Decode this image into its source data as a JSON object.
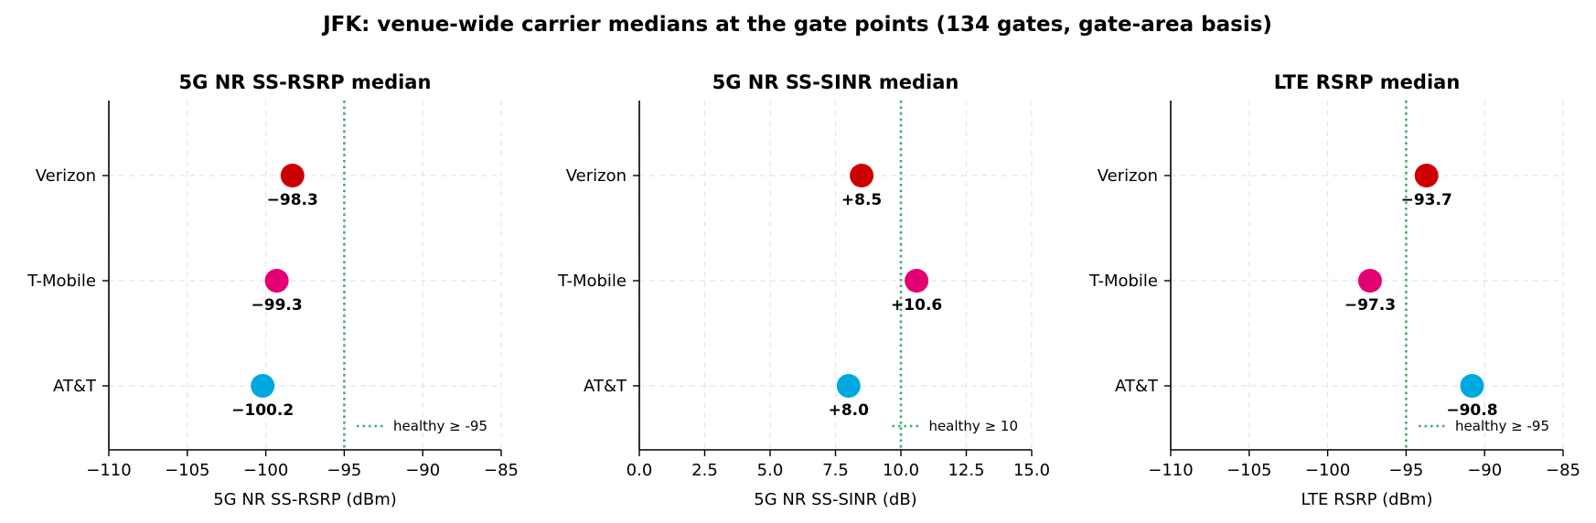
{
  "figure": {
    "title": "JFK: venue-wide carrier medians at the gate points (134 gates, gate-area basis)"
  },
  "colors": {
    "Verizon": "#cc0000",
    "T-Mobile": "#e20074",
    "AT&T": "#00a8e0",
    "threshold": "#3cae6a"
  },
  "chart_data": [
    {
      "type": "scatter",
      "title": "5G NR SS-RSRP median",
      "xlabel": "5G NR SS-RSRP (dBm)",
      "ylabel": "",
      "xlim": [
        -110,
        -85
      ],
      "xticks": [
        -110,
        -105,
        -100,
        -95,
        -90,
        -85
      ],
      "xtick_labels": [
        "−110",
        "−105",
        "−100",
        "−95",
        "−90",
        "−85"
      ],
      "categories": [
        "Verizon",
        "T-Mobile",
        "AT&T"
      ],
      "values": [
        -98.3,
        -99.3,
        -100.2
      ],
      "value_labels": [
        "−98.3",
        "−99.3",
        "−100.2"
      ],
      "threshold": {
        "value": -95,
        "label": "healthy ≥ -95"
      },
      "legend_position": "lower-right",
      "grid": true
    },
    {
      "type": "scatter",
      "title": "5G NR SS-SINR median",
      "xlabel": "5G NR SS-SINR (dB)",
      "ylabel": "",
      "xlim": [
        0,
        15
      ],
      "xticks": [
        0,
        2.5,
        5,
        7.5,
        10,
        12.5,
        15
      ],
      "xtick_labels": [
        "0.0",
        "2.5",
        "5.0",
        "7.5",
        "10.0",
        "12.5",
        "15.0"
      ],
      "categories": [
        "Verizon",
        "T-Mobile",
        "AT&T"
      ],
      "values": [
        8.5,
        10.6,
        8.0
      ],
      "value_labels": [
        "+8.5",
        "+10.6",
        "+8.0"
      ],
      "threshold": {
        "value": 10,
        "label": "healthy ≥ 10"
      },
      "legend_position": "lower-right",
      "grid": true
    },
    {
      "type": "scatter",
      "title": "LTE RSRP median",
      "xlabel": "LTE RSRP (dBm)",
      "ylabel": "",
      "xlim": [
        -110,
        -85
      ],
      "xticks": [
        -110,
        -105,
        -100,
        -95,
        -90,
        -85
      ],
      "xtick_labels": [
        "−110",
        "−105",
        "−100",
        "−95",
        "−90",
        "−85"
      ],
      "categories": [
        "Verizon",
        "T-Mobile",
        "AT&T"
      ],
      "values": [
        -93.7,
        -97.3,
        -90.8
      ],
      "value_labels": [
        "−93.7",
        "−97.3",
        "−90.8"
      ],
      "threshold": {
        "value": -95,
        "label": "healthy ≥ -95"
      },
      "legend_position": "lower-right",
      "grid": true
    }
  ]
}
